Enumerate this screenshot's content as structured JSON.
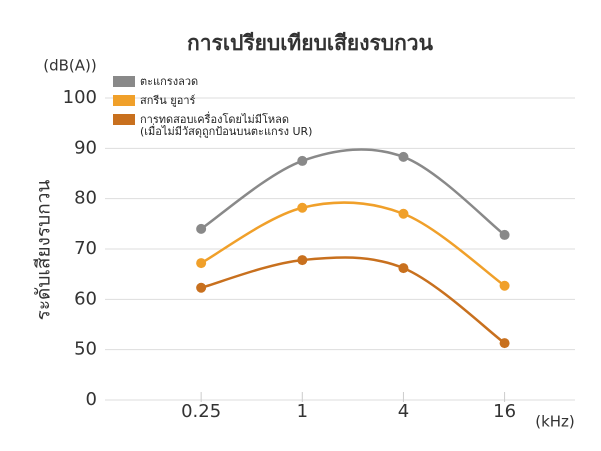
{
  "chart_data": {
    "type": "line",
    "title": "การเปรียบเทียบเสียงรบกวน",
    "y_unit": "(dB(A))",
    "x_unit": "(kHz)",
    "y_label": "ระดับเสียงรบกวน",
    "x": [
      0.25,
      1,
      4,
      16
    ],
    "xlog": true,
    "xlim": [
      0.0625,
      42
    ],
    "xticks": [
      0.25,
      1,
      4,
      16
    ],
    "ylim": [
      40,
      100
    ],
    "yticks": [
      {
        "value": 40,
        "label": "0"
      },
      50,
      60,
      70,
      80,
      90,
      100
    ],
    "grid": true,
    "series": [
      {
        "name": "ตะแกรงลวด",
        "color": "#898989",
        "values": [
          74,
          87.5,
          88.3,
          72.8
        ]
      },
      {
        "name": "สกรีน ยูอาร์",
        "color": "#f0a02a",
        "values": [
          67.2,
          78.2,
          77,
          62.7
        ]
      },
      {
        "name": "การทดสอบเครื่องโดยไม่มีโหลด\n(เมื่อไม่มีวัสดุถูกป้อนบนตะแกรง UR)",
        "color": "#c8701e",
        "values": [
          62.3,
          67.8,
          66.2,
          51.3
        ]
      }
    ]
  }
}
